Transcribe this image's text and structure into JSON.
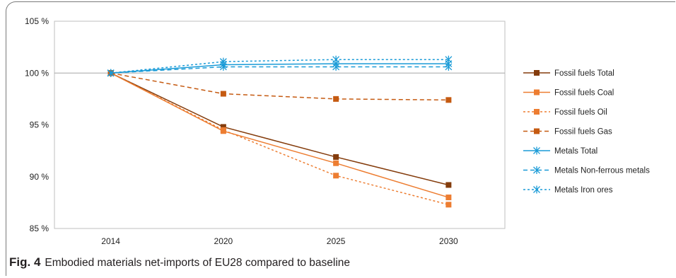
{
  "figure": {
    "label": "Fig. 4",
    "caption": "Embodied materials net-imports of EU28 compared to baseline"
  },
  "chart_data": {
    "type": "line",
    "x": [
      "2014",
      "2020",
      "2025",
      "2030"
    ],
    "ylim": [
      85,
      105
    ],
    "yticks": [
      85,
      90,
      95,
      100,
      105
    ],
    "ytick_labels": [
      "85 %",
      "90 %",
      "95 %",
      "100 %",
      "105 %"
    ],
    "xlabel": "",
    "ylabel": "",
    "reference_line": 100,
    "legend_position": "right",
    "series": [
      {
        "name": "Fossil fuels Total",
        "values": [
          100,
          94.8,
          91.9,
          89.2
        ],
        "color": "#843c0c",
        "dash": "solid",
        "marker": "square"
      },
      {
        "name": "Fossil fuels Coal",
        "values": [
          100,
          94.4,
          91.3,
          88.0
        ],
        "color": "#ed7d31",
        "dash": "solid",
        "marker": "square"
      },
      {
        "name": "Fossil fuels Oil",
        "values": [
          100,
          94.5,
          90.1,
          87.3
        ],
        "color": "#ed7d31",
        "dash": "dot",
        "marker": "square"
      },
      {
        "name": "Fossil fuels Gas",
        "values": [
          100,
          98.0,
          97.5,
          97.4
        ],
        "color": "#c55a11",
        "dash": "dash",
        "marker": "square"
      },
      {
        "name": "Metals Total",
        "values": [
          100,
          100.8,
          100.9,
          100.9
        ],
        "color": "#1a9bd7",
        "dash": "solid",
        "marker": "star"
      },
      {
        "name": "Metals Non-ferrous metals",
        "values": [
          100,
          100.6,
          100.6,
          100.6
        ],
        "color": "#1a9bd7",
        "dash": "dash",
        "marker": "star"
      },
      {
        "name": "Metals Iron ores",
        "values": [
          100,
          101.1,
          101.3,
          101.3
        ],
        "color": "#1a9bd7",
        "dash": "dot",
        "marker": "star"
      }
    ]
  }
}
